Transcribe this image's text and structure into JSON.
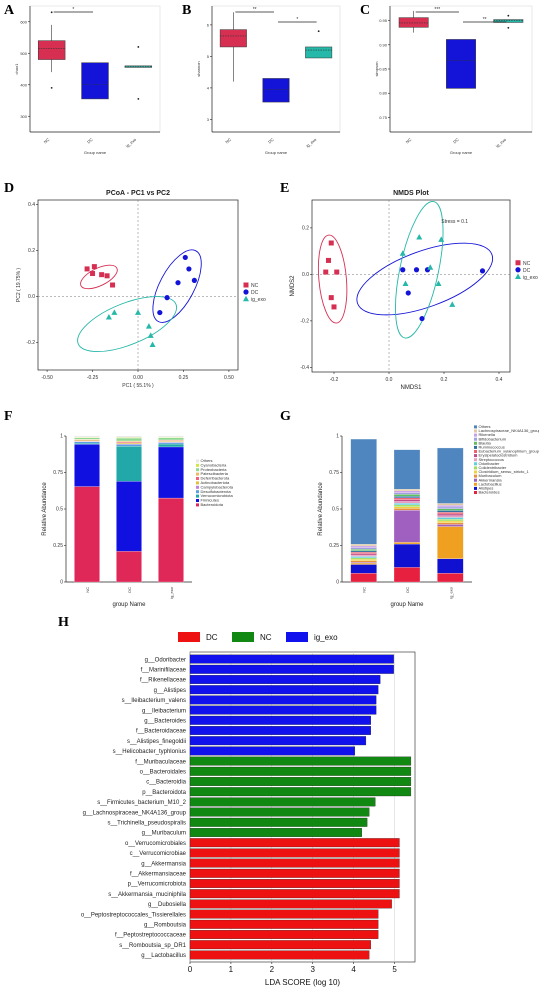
{
  "panels": [
    "A",
    "B",
    "C",
    "D",
    "E",
    "F",
    "G",
    "H"
  ],
  "colors": {
    "NC": "#d62f52",
    "DC": "#1414d8",
    "ig_exo": "#26b8a8",
    "lefse_DC": "#ee1111",
    "lefse_NC": "#118811",
    "lefse_ig": "#1111ee"
  },
  "chart_data": [
    {
      "panel": "A",
      "type": "box",
      "ylabel": "chao1",
      "xlabel": "Group name",
      "yticks": [
        "300",
        "400",
        "500",
        "600"
      ],
      "ylim": [
        250,
        650
      ],
      "categories": [
        "NC",
        "DC",
        "ig_exo"
      ],
      "boxes": [
        {
          "name": "NC",
          "q1": 480,
          "median": 515,
          "q3": 540,
          "whisker_low": 440,
          "whisker_high": 590,
          "outliers": [
            390,
            630
          ]
        },
        {
          "name": "DC",
          "q1": 355,
          "median": 400,
          "q3": 470,
          "whisker_low": 355,
          "whisker_high": 470,
          "outliers": []
        },
        {
          "name": "ig_exo",
          "q1": 455,
          "median": 457,
          "q3": 460,
          "whisker_low": 455,
          "whisker_high": 460,
          "outliers": [
            355,
            520
          ]
        }
      ],
      "significance": [
        {
          "from": "NC",
          "to": "DC",
          "label": "*"
        }
      ]
    },
    {
      "panel": "B",
      "type": "box",
      "ylabel": "shannon",
      "xlabel": "Group name",
      "yticks": [
        "3",
        "4",
        "5",
        "6"
      ],
      "ylim": [
        2.6,
        6.6
      ],
      "categories": [
        "NC",
        "DC",
        "ig_exo"
      ],
      "boxes": [
        {
          "name": "NC",
          "q1": 5.3,
          "median": 5.65,
          "q3": 5.85,
          "whisker_low": 4.2,
          "whisker_high": 6.4,
          "outliers": []
        },
        {
          "name": "DC",
          "q1": 3.55,
          "median": 3.95,
          "q3": 4.3,
          "whisker_low": 3.55,
          "whisker_high": 4.3,
          "outliers": []
        },
        {
          "name": "ig_exo",
          "q1": 4.95,
          "median": 5.2,
          "q3": 5.3,
          "whisker_low": 4.95,
          "whisker_high": 5.3,
          "outliers": [
            5.8
          ]
        }
      ],
      "significance": [
        {
          "from": "NC",
          "to": "DC",
          "label": "**"
        },
        {
          "from": "DC",
          "to": "ig_exo",
          "label": "*"
        }
      ]
    },
    {
      "panel": "C",
      "type": "box",
      "ylabel": "simpson",
      "xlabel": "Group name",
      "yticks": [
        "0.75",
        "0.80",
        "0.85",
        "0.90",
        "0.95"
      ],
      "ylim": [
        0.72,
        0.98
      ],
      "categories": [
        "NC",
        "DC",
        "ig_exo"
      ],
      "boxes": [
        {
          "name": "NC",
          "q1": 0.936,
          "median": 0.945,
          "q3": 0.956,
          "whisker_low": 0.925,
          "whisker_high": 0.97,
          "outliers": []
        },
        {
          "name": "DC",
          "q1": 0.81,
          "median": 0.868,
          "q3": 0.911,
          "whisker_low": 0.81,
          "whisker_high": 0.911,
          "outliers": []
        },
        {
          "name": "ig_exo",
          "q1": 0.946,
          "median": 0.95,
          "q3": 0.952,
          "whisker_low": 0.946,
          "whisker_high": 0.952,
          "outliers": [
            0.935,
            0.96
          ]
        }
      ],
      "significance": [
        {
          "from": "NC",
          "to": "DC",
          "label": "***"
        },
        {
          "from": "DC",
          "to": "ig_exo",
          "label": "**"
        }
      ]
    },
    {
      "panel": "D",
      "type": "scatter",
      "title": "PCoA - PC1 vs PC2",
      "xlabel": "PC1 ( 55.1% )",
      "ylabel": "PC2 ( 19.75% )",
      "xlim": [
        -0.55,
        0.55
      ],
      "ylim": [
        -0.32,
        0.42
      ],
      "xticks": [
        -0.5,
        -0.25,
        0,
        0.25,
        0.5
      ],
      "yticks": [
        -0.2,
        0,
        0.2,
        0.4
      ],
      "legend": [
        "NC",
        "DC",
        "ig_exo"
      ],
      "series": [
        {
          "name": "NC",
          "marker": "square",
          "points": [
            [
              -0.28,
              0.12
            ],
            [
              -0.25,
              0.1
            ],
            [
              -0.24,
              0.13
            ],
            [
              -0.2,
              0.095
            ],
            [
              -0.17,
              0.09
            ],
            [
              -0.14,
              0.05
            ]
          ]
        },
        {
          "name": "DC",
          "marker": "circle",
          "points": [
            [
              0.16,
              -0.005
            ],
            [
              0.22,
              0.06
            ],
            [
              0.28,
              0.12
            ],
            [
              0.26,
              0.17
            ],
            [
              0.31,
              0.07
            ],
            [
              0.12,
              -0.07
            ]
          ]
        },
        {
          "name": "ig_exo",
          "marker": "triangle",
          "points": [
            [
              -0.16,
              -0.09
            ],
            [
              -0.13,
              -0.07
            ],
            [
              0.0,
              -0.07
            ],
            [
              0.06,
              -0.13
            ],
            [
              0.07,
              -0.17
            ],
            [
              0.08,
              -0.21
            ]
          ]
        }
      ]
    },
    {
      "panel": "E",
      "type": "scatter",
      "title": "NMDS Plot",
      "xlabel": "NMDS1",
      "ylabel": "NMDS2",
      "annotation": "Stress = 0.1",
      "xlim": [
        -0.28,
        0.44
      ],
      "ylim": [
        -0.42,
        0.32
      ],
      "xticks": [
        -0.2,
        0,
        0.2,
        0.4
      ],
      "yticks": [
        -0.4,
        -0.2,
        0,
        0.2
      ],
      "legend": [
        "NC",
        "DC",
        "ig_exo"
      ],
      "series": [
        {
          "name": "NC",
          "marker": "square",
          "points": [
            [
              -0.22,
              0.06
            ],
            [
              -0.23,
              0.01
            ],
            [
              -0.21,
              0.135
            ],
            [
              -0.19,
              0.01
            ],
            [
              -0.2,
              -0.14
            ],
            [
              -0.21,
              -0.1
            ]
          ]
        },
        {
          "name": "DC",
          "marker": "circle",
          "points": [
            [
              0.05,
              0.02
            ],
            [
              0.1,
              0.02
            ],
            [
              0.07,
              -0.08
            ],
            [
              0.12,
              -0.19
            ],
            [
              0.34,
              0.015
            ],
            [
              0.14,
              0.02
            ]
          ]
        },
        {
          "name": "ig_exo",
          "marker": "triangle",
          "points": [
            [
              0.05,
              0.09
            ],
            [
              0.11,
              0.16
            ],
            [
              0.19,
              0.15
            ],
            [
              0.15,
              0.03
            ],
            [
              0.18,
              -0.04
            ],
            [
              0.06,
              -0.04
            ],
            [
              0.23,
              -0.13
            ]
          ]
        }
      ]
    },
    {
      "panel": "F",
      "type": "bar",
      "stacked": true,
      "xlabel": "group Name",
      "ylabel": "Relative Abundance",
      "categories": [
        "NC",
        "DC",
        "ig_exo"
      ],
      "yticks": [
        "0",
        "0.25",
        "0.5",
        "0.75",
        "1"
      ],
      "series": [
        {
          "name": "Others",
          "color": "#e8e8e8",
          "values": [
            0.008,
            0.01,
            0.008
          ]
        },
        {
          "name": "Cyanobacteria",
          "color": "#d0e842",
          "values": [
            0.004,
            0.004,
            0.004
          ]
        },
        {
          "name": "Proteobacteria",
          "color": "#8fd88f",
          "values": [
            0.01,
            0.02,
            0.015
          ]
        },
        {
          "name": "Patescibacteria",
          "color": "#f0b860",
          "values": [
            0.004,
            0.006,
            0.004
          ]
        },
        {
          "name": "Deferribacterota",
          "color": "#f06080",
          "values": [
            0.004,
            0.006,
            0.004
          ]
        },
        {
          "name": "Actinobacteriota",
          "color": "#e0c040",
          "values": [
            0.006,
            0.008,
            0.006
          ]
        },
        {
          "name": "Campylobacterota",
          "color": "#c080e0",
          "values": [
            0.004,
            0.004,
            0.004
          ]
        },
        {
          "name": "Desulfobacterota",
          "color": "#5aa0e0",
          "values": [
            0.01,
            0.012,
            0.01
          ]
        },
        {
          "name": "Verrucomicrobiota",
          "color": "#22a8a8",
          "values": [
            0.006,
            0.24,
            0.02
          ]
        },
        {
          "name": "Firmicutes",
          "color": "#1010e0",
          "values": [
            0.29,
            0.48,
            0.35
          ]
        },
        {
          "name": "Bacteroidota",
          "color": "#e02858",
          "values": [
            0.654,
            0.21,
            0.575
          ]
        }
      ]
    },
    {
      "panel": "G",
      "type": "bar",
      "stacked": true,
      "xlabel": "group Name",
      "ylabel": "Relative Abundance",
      "categories": [
        "NC",
        "DC",
        "ig_exo"
      ],
      "yticks": [
        "0",
        "0.25",
        "0.5",
        "0.75",
        "1"
      ],
      "series": [
        {
          "name": "Others",
          "color": "#4f86c0",
          "values": [
            0.72,
            0.27,
            0.38
          ]
        },
        {
          "name": "Lachnospiraceae_NK4A136_group",
          "color": "#e0c8a0",
          "values": [
            0.012,
            0.012,
            0.012
          ]
        },
        {
          "name": "Rikenella",
          "color": "#c8a0e8",
          "values": [
            0.012,
            0.012,
            0.012
          ]
        },
        {
          "name": "Bifidobacterium",
          "color": "#a0a0e0",
          "values": [
            0.01,
            0.012,
            0.012
          ]
        },
        {
          "name": "Blautia",
          "color": "#60c060",
          "values": [
            0.01,
            0.012,
            0.012
          ]
        },
        {
          "name": "Ruminococcus",
          "color": "#3070a0",
          "values": [
            0.01,
            0.012,
            0.012
          ]
        },
        {
          "name": "Eubacterium_xylanophilum_group",
          "color": "#f06070",
          "values": [
            0.01,
            0.012,
            0.012
          ]
        },
        {
          "name": "Erysipelatoclostridium",
          "color": "#c04a8a",
          "values": [
            0.01,
            0.012,
            0.012
          ]
        },
        {
          "name": "Streptococcus",
          "color": "#e8a0c0",
          "values": [
            0.01,
            0.012,
            0.012
          ]
        },
        {
          "name": "Odoribacter",
          "color": "#60d0e0",
          "values": [
            0.01,
            0.012,
            0.012
          ]
        },
        {
          "name": "Colidextribacter",
          "color": "#a0e060",
          "values": [
            0.01,
            0.012,
            0.012
          ]
        },
        {
          "name": "Clostridium_sensu_stricto_1",
          "color": "#f0d040",
          "values": [
            0.01,
            0.012,
            0.012
          ]
        },
        {
          "name": "Muribaculum",
          "color": "#e89040",
          "values": [
            0.01,
            0.012,
            0.012
          ]
        },
        {
          "name": "Akkermansia",
          "color": "#a060c0",
          "values": [
            0.005,
            0.22,
            0.014
          ]
        },
        {
          "name": "Lactobacillus",
          "color": "#f0a020",
          "values": [
            0.01,
            0.012,
            0.22
          ]
        },
        {
          "name": "Alistipes",
          "color": "#1010d0",
          "values": [
            0.06,
            0.16,
            0.1
          ]
        },
        {
          "name": "Bacteroides",
          "color": "#e82040",
          "values": [
            0.06,
            0.1,
            0.06
          ]
        }
      ]
    },
    {
      "panel": "H",
      "type": "bar",
      "orientation": "horizontal",
      "xlabel": "LDA SCORE (log 10)",
      "xlim": [
        0,
        5.5
      ],
      "xticks": [
        0,
        1,
        2,
        3,
        4,
        5
      ],
      "legend": [
        "DC",
        "NC",
        "ig_exo"
      ],
      "bars": [
        {
          "label": "g__Odoribacter",
          "group": "ig_exo",
          "value": 4.98
        },
        {
          "label": "f__Marinifilaceae",
          "group": "ig_exo",
          "value": 4.98
        },
        {
          "label": "f__Rikenellaceae",
          "group": "ig_exo",
          "value": 4.65
        },
        {
          "label": "g__Alistipes",
          "group": "ig_exo",
          "value": 4.6
        },
        {
          "label": "s__Ileibacterium_valens",
          "group": "ig_exo",
          "value": 4.55
        },
        {
          "label": "g__Ileibacterium",
          "group": "ig_exo",
          "value": 4.55
        },
        {
          "label": "g__Bacteroides",
          "group": "ig_exo",
          "value": 4.42
        },
        {
          "label": "f__Bacteroidaceae",
          "group": "ig_exo",
          "value": 4.42
        },
        {
          "label": "s__Alistipes_finegoldii",
          "group": "ig_exo",
          "value": 4.3
        },
        {
          "label": "s__Helicobacter_typhlonius",
          "group": "ig_exo",
          "value": 4.03
        },
        {
          "label": "f__Muribaculaceae",
          "group": "NC",
          "value": 5.4
        },
        {
          "label": "o__Bacteroidales",
          "group": "NC",
          "value": 5.4
        },
        {
          "label": "c__Bacteroidia",
          "group": "NC",
          "value": 5.4
        },
        {
          "label": "p__Bacteroidota",
          "group": "NC",
          "value": 5.4
        },
        {
          "label": "s__Firmicutes_bacterium_M10_2",
          "group": "NC",
          "value": 4.53
        },
        {
          "label": "g__Lachnospiraceae_NK4A136_group",
          "group": "NC",
          "value": 4.38
        },
        {
          "label": "s__Trichinella_pseudospiralis",
          "group": "NC",
          "value": 4.33
        },
        {
          "label": "g__Muribaculum",
          "group": "NC",
          "value": 4.2
        },
        {
          "label": "o__Verrucomicrobiales",
          "group": "DC",
          "value": 5.12
        },
        {
          "label": "c__Verrucomicrobiae",
          "group": "DC",
          "value": 5.12
        },
        {
          "label": "g__Akkermansia",
          "group": "DC",
          "value": 5.12
        },
        {
          "label": "f__Akkermansiaceae",
          "group": "DC",
          "value": 5.12
        },
        {
          "label": "p__Verrucomicrobiota",
          "group": "DC",
          "value": 5.12
        },
        {
          "label": "s__Akkermansia_muciniphila",
          "group": "DC",
          "value": 5.12
        },
        {
          "label": "g__Dubosiella",
          "group": "DC",
          "value": 4.93
        },
        {
          "label": "o__Peptostreptococcales_Tissierellales",
          "group": "DC",
          "value": 4.6
        },
        {
          "label": "g__Romboutsia",
          "group": "DC",
          "value": 4.6
        },
        {
          "label": "f__Peptostreptococcaceae",
          "group": "DC",
          "value": 4.6
        },
        {
          "label": "s__Romboutsia_sp_DR1",
          "group": "DC",
          "value": 4.42
        },
        {
          "label": "g__Lactobacillus",
          "group": "DC",
          "value": 4.38
        }
      ]
    }
  ]
}
